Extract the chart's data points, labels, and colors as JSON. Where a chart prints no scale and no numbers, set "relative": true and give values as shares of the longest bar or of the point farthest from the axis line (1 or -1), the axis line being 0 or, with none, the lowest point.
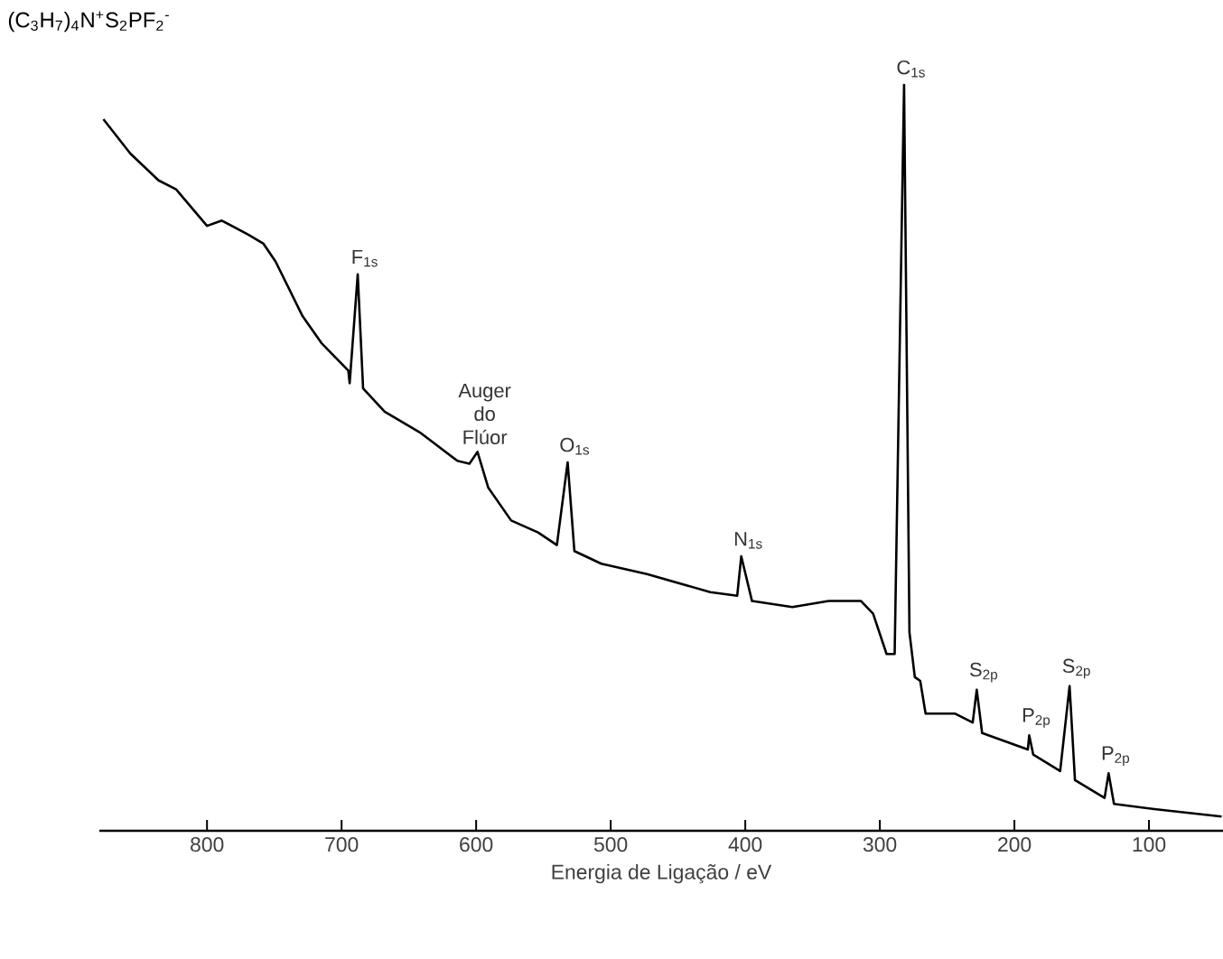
{
  "chart_data": {
    "type": "line",
    "relative": true,
    "title": "(C$_{3}$H$_{7}$)$_{4}$N$^{+}$S$_{2}$PF$_{2}$$^{-}$",
    "xlabel": "Energia de Ligação / eV",
    "xlim": [
      880,
      45
    ],
    "xticks": [
      800,
      700,
      600,
      500,
      400,
      300,
      200,
      100
    ],
    "marker": "none",
    "line_style": "solid",
    "series": [
      {
        "color": "#000000",
        "x": [
          877,
          857,
          836,
          823,
          800,
          789,
          769,
          758,
          749,
          729,
          715,
          695,
          694,
          688,
          684,
          668,
          641,
          614,
          605,
          599,
          591,
          574,
          554,
          540,
          532,
          527,
          507,
          473,
          426,
          406,
          403,
          395,
          365,
          338,
          314,
          305,
          295,
          289,
          282,
          278,
          274,
          270,
          266,
          244,
          231,
          228,
          224,
          190,
          189,
          186,
          166,
          159,
          155,
          133,
          130,
          126,
          96,
          46
        ],
        "values": [
          0.954,
          0.908,
          0.872,
          0.86,
          0.811,
          0.818,
          0.799,
          0.787,
          0.763,
          0.69,
          0.654,
          0.617,
          0.6,
          0.746,
          0.593,
          0.562,
          0.533,
          0.496,
          0.492,
          0.508,
          0.46,
          0.416,
          0.4,
          0.383,
          0.494,
          0.375,
          0.358,
          0.344,
          0.32,
          0.315,
          0.368,
          0.308,
          0.3,
          0.308,
          0.308,
          0.291,
          0.237,
          0.237,
          1.0,
          0.266,
          0.206,
          0.201,
          0.157,
          0.157,
          0.145,
          0.189,
          0.131,
          0.109,
          0.128,
          0.102,
          0.08,
          0.194,
          0.068,
          0.044,
          0.077,
          0.036,
          0.029,
          0.019
        ]
      }
    ],
    "annotations": [
      {
        "text": "F$_{1s}$",
        "x": 688,
        "y": 0.746
      },
      {
        "text": "Auger do Flúor",
        "x": 599,
        "y": 0.508
      },
      {
        "text": "O$_{1s}$",
        "x": 532,
        "y": 0.494
      },
      {
        "text": "N$_{1s}$",
        "x": 403,
        "y": 0.368
      },
      {
        "text": "C$_{1s}$",
        "x": 282,
        "y": 1.0
      },
      {
        "text": "S$_{2p}$",
        "x": 228,
        "y": 0.189
      },
      {
        "text": "P$_{2p}$",
        "x": 189,
        "y": 0.128
      },
      {
        "text": "S$_{2p}$",
        "x": 159,
        "y": 0.194
      },
      {
        "text": "P$_{2p}$",
        "x": 130,
        "y": 0.077
      }
    ]
  }
}
